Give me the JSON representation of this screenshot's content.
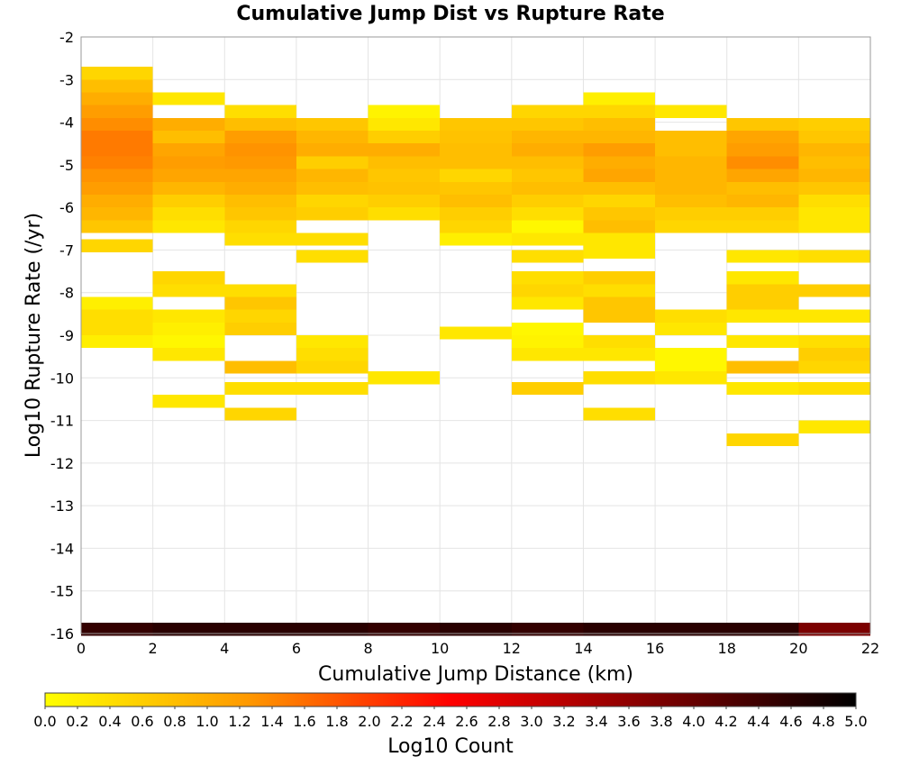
{
  "chart_data": {
    "type": "heatmap",
    "title": "Cumulative Jump Dist vs Rupture Rate",
    "xlabel": "Cumulative Jump Distance (km)",
    "ylabel": "Log10 Rupture Rate (/yr)",
    "xlim": [
      0,
      22
    ],
    "ylim": [
      -16,
      -2
    ],
    "xticks": [
      "0",
      "2",
      "4",
      "6",
      "8",
      "10",
      "12",
      "14",
      "16",
      "18",
      "20",
      "22"
    ],
    "yticks": [
      "-2",
      "-3",
      "-4",
      "-5",
      "-6",
      "-7",
      "-8",
      "-9",
      "-10",
      "-11",
      "-12",
      "-13",
      "-14",
      "-15",
      "-16"
    ],
    "x_bin_width": 2,
    "y_bin_height": 0.3,
    "grid": true,
    "colorbar": {
      "label": "Log10 Count",
      "min": 0.0,
      "max": 5.0,
      "ticks": [
        "0.0",
        "0.2",
        "0.4",
        "0.6",
        "0.8",
        "1.0",
        "1.2",
        "1.4",
        "1.6",
        "1.8",
        "2.0",
        "2.2",
        "2.4",
        "2.6",
        "2.8",
        "3.0",
        "3.2",
        "3.4",
        "3.6",
        "3.8",
        "4.0",
        "4.2",
        "4.4",
        "4.6",
        "4.8",
        "5.0"
      ],
      "colors": [
        "#ffff00",
        "#ff9900",
        "#ff0000",
        "#800000",
        "#000000"
      ],
      "placement": "bottom"
    },
    "cells": [
      {
        "x": 0,
        "y": -2.85,
        "v": 0.5
      },
      {
        "x": 0,
        "y": -3.15,
        "v": 0.8
      },
      {
        "x": 0,
        "y": -3.45,
        "v": 1.0
      },
      {
        "x": 0,
        "y": -3.75,
        "v": 1.2
      },
      {
        "x": 0,
        "y": -4.05,
        "v": 1.35
      },
      {
        "x": 0,
        "y": -4.35,
        "v": 1.5
      },
      {
        "x": 0,
        "y": -4.65,
        "v": 1.5
      },
      {
        "x": 0,
        "y": -4.95,
        "v": 1.45
      },
      {
        "x": 0,
        "y": -5.25,
        "v": 1.3
      },
      {
        "x": 0,
        "y": -5.55,
        "v": 1.2
      },
      {
        "x": 0,
        "y": -5.85,
        "v": 1.0
      },
      {
        "x": 0,
        "y": -6.15,
        "v": 0.9
      },
      {
        "x": 0,
        "y": -6.45,
        "v": 0.7
      },
      {
        "x": 0,
        "y": -6.9,
        "v": 0.5
      },
      {
        "x": 0,
        "y": -8.25,
        "v": 0.2
      },
      {
        "x": 0,
        "y": -8.55,
        "v": 0.4
      },
      {
        "x": 0,
        "y": -8.85,
        "v": 0.4
      },
      {
        "x": 0,
        "y": -9.15,
        "v": 0.2
      },
      {
        "x": 2,
        "y": -3.45,
        "v": 0.3
      },
      {
        "x": 2,
        "y": -4.05,
        "v": 1.0
      },
      {
        "x": 2,
        "y": -4.35,
        "v": 0.8
      },
      {
        "x": 2,
        "y": -4.65,
        "v": 1.1
      },
      {
        "x": 2,
        "y": -4.95,
        "v": 1.2
      },
      {
        "x": 2,
        "y": -5.25,
        "v": 1.1
      },
      {
        "x": 2,
        "y": -5.55,
        "v": 0.9
      },
      {
        "x": 2,
        "y": -5.85,
        "v": 0.6
      },
      {
        "x": 2,
        "y": -6.15,
        "v": 0.4
      },
      {
        "x": 2,
        "y": -6.45,
        "v": 0.3
      },
      {
        "x": 2,
        "y": -7.65,
        "v": 0.5
      },
      {
        "x": 2,
        "y": -7.95,
        "v": 0.4
      },
      {
        "x": 2,
        "y": -8.55,
        "v": 0.3
      },
      {
        "x": 2,
        "y": -8.85,
        "v": 0.2
      },
      {
        "x": 2,
        "y": -9.15,
        "v": 0.1
      },
      {
        "x": 2,
        "y": -9.45,
        "v": 0.3
      },
      {
        "x": 2,
        "y": -10.55,
        "v": 0.3
      },
      {
        "x": 4,
        "y": -3.75,
        "v": 0.4
      },
      {
        "x": 4,
        "y": -4.05,
        "v": 0.8
      },
      {
        "x": 4,
        "y": -4.35,
        "v": 1.2
      },
      {
        "x": 4,
        "y": -4.65,
        "v": 1.3
      },
      {
        "x": 4,
        "y": -4.95,
        "v": 1.25
      },
      {
        "x": 4,
        "y": -5.25,
        "v": 1.1
      },
      {
        "x": 4,
        "y": -5.55,
        "v": 1.0
      },
      {
        "x": 4,
        "y": -5.85,
        "v": 0.8
      },
      {
        "x": 4,
        "y": -6.15,
        "v": 0.7
      },
      {
        "x": 4,
        "y": -6.45,
        "v": 0.5
      },
      {
        "x": 4,
        "y": -6.75,
        "v": 0.4
      },
      {
        "x": 4,
        "y": -7.95,
        "v": 0.4
      },
      {
        "x": 4,
        "y": -8.25,
        "v": 0.7
      },
      {
        "x": 4,
        "y": -8.55,
        "v": 0.5
      },
      {
        "x": 4,
        "y": -8.85,
        "v": 0.6
      },
      {
        "x": 4,
        "y": -9.75,
        "v": 0.8
      },
      {
        "x": 4,
        "y": -10.25,
        "v": 0.4
      },
      {
        "x": 4,
        "y": -10.85,
        "v": 0.5
      },
      {
        "x": 6,
        "y": -4.05,
        "v": 0.7
      },
      {
        "x": 6,
        "y": -4.35,
        "v": 0.9
      },
      {
        "x": 6,
        "y": -4.65,
        "v": 1.0
      },
      {
        "x": 6,
        "y": -4.95,
        "v": 0.6
      },
      {
        "x": 6,
        "y": -5.25,
        "v": 0.9
      },
      {
        "x": 6,
        "y": -5.55,
        "v": 0.8
      },
      {
        "x": 6,
        "y": -5.85,
        "v": 0.5
      },
      {
        "x": 6,
        "y": -6.15,
        "v": 0.6
      },
      {
        "x": 6,
        "y": -6.75,
        "v": 0.4
      },
      {
        "x": 6,
        "y": -7.15,
        "v": 0.4
      },
      {
        "x": 6,
        "y": -9.15,
        "v": 0.3
      },
      {
        "x": 6,
        "y": -9.45,
        "v": 0.4
      },
      {
        "x": 6,
        "y": -9.75,
        "v": 0.5
      },
      {
        "x": 6,
        "y": -10.25,
        "v": 0.4
      },
      {
        "x": 8,
        "y": -3.75,
        "v": 0.15
      },
      {
        "x": 8,
        "y": -4.05,
        "v": 0.3
      },
      {
        "x": 8,
        "y": -4.35,
        "v": 0.6
      },
      {
        "x": 8,
        "y": -4.65,
        "v": 1.0
      },
      {
        "x": 8,
        "y": -4.95,
        "v": 0.8
      },
      {
        "x": 8,
        "y": -5.25,
        "v": 0.7
      },
      {
        "x": 8,
        "y": -5.55,
        "v": 0.75
      },
      {
        "x": 8,
        "y": -5.85,
        "v": 0.6
      },
      {
        "x": 8,
        "y": -6.15,
        "v": 0.4
      },
      {
        "x": 8,
        "y": -10.0,
        "v": 0.3
      },
      {
        "x": 10,
        "y": -4.05,
        "v": 0.7
      },
      {
        "x": 10,
        "y": -4.35,
        "v": 0.75
      },
      {
        "x": 10,
        "y": -4.65,
        "v": 0.8
      },
      {
        "x": 10,
        "y": -4.95,
        "v": 0.8
      },
      {
        "x": 10,
        "y": -5.25,
        "v": 0.5
      },
      {
        "x": 10,
        "y": -5.55,
        "v": 0.7
      },
      {
        "x": 10,
        "y": -5.85,
        "v": 0.8
      },
      {
        "x": 10,
        "y": -6.15,
        "v": 0.6
      },
      {
        "x": 10,
        "y": -6.45,
        "v": 0.5
      },
      {
        "x": 10,
        "y": -6.75,
        "v": 0.2
      },
      {
        "x": 10,
        "y": -8.95,
        "v": 0.3
      },
      {
        "x": 12,
        "y": -3.75,
        "v": 0.5
      },
      {
        "x": 12,
        "y": -4.05,
        "v": 0.7
      },
      {
        "x": 12,
        "y": -4.35,
        "v": 0.9
      },
      {
        "x": 12,
        "y": -4.65,
        "v": 1.0
      },
      {
        "x": 12,
        "y": -4.95,
        "v": 0.8
      },
      {
        "x": 12,
        "y": -5.25,
        "v": 0.7
      },
      {
        "x": 12,
        "y": -5.55,
        "v": 0.8
      },
      {
        "x": 12,
        "y": -5.85,
        "v": 0.6
      },
      {
        "x": 12,
        "y": -6.15,
        "v": 0.4
      },
      {
        "x": 12,
        "y": -6.45,
        "v": 0.1
      },
      {
        "x": 12,
        "y": -6.75,
        "v": 0.3
      },
      {
        "x": 12,
        "y": -7.15,
        "v": 0.4
      },
      {
        "x": 12,
        "y": -7.65,
        "v": 0.4
      },
      {
        "x": 12,
        "y": -7.95,
        "v": 0.5
      },
      {
        "x": 12,
        "y": -8.25,
        "v": 0.3
      },
      {
        "x": 12,
        "y": -8.85,
        "v": 0.1
      },
      {
        "x": 12,
        "y": -9.15,
        "v": 0.15
      },
      {
        "x": 12,
        "y": -9.45,
        "v": 0.3
      },
      {
        "x": 12,
        "y": -10.25,
        "v": 0.6
      },
      {
        "x": 14,
        "y": -3.45,
        "v": 0.2
      },
      {
        "x": 14,
        "y": -3.75,
        "v": 0.5
      },
      {
        "x": 14,
        "y": -4.05,
        "v": 0.8
      },
      {
        "x": 14,
        "y": -4.35,
        "v": 0.9
      },
      {
        "x": 14,
        "y": -4.65,
        "v": 1.2
      },
      {
        "x": 14,
        "y": -4.95,
        "v": 1.0
      },
      {
        "x": 14,
        "y": -5.25,
        "v": 1.1
      },
      {
        "x": 14,
        "y": -5.55,
        "v": 0.8
      },
      {
        "x": 14,
        "y": -5.85,
        "v": 0.5
      },
      {
        "x": 14,
        "y": -6.15,
        "v": 0.7
      },
      {
        "x": 14,
        "y": -6.45,
        "v": 0.8
      },
      {
        "x": 14,
        "y": -6.75,
        "v": 0.3
      },
      {
        "x": 14,
        "y": -7.05,
        "v": 0.3
      },
      {
        "x": 14,
        "y": -7.65,
        "v": 0.6
      },
      {
        "x": 14,
        "y": -7.95,
        "v": 0.4
      },
      {
        "x": 14,
        "y": -8.25,
        "v": 0.7
      },
      {
        "x": 14,
        "y": -8.55,
        "v": 0.7
      },
      {
        "x": 14,
        "y": -9.15,
        "v": 0.4
      },
      {
        "x": 14,
        "y": -9.45,
        "v": 0.3
      },
      {
        "x": 14,
        "y": -10.0,
        "v": 0.4
      },
      {
        "x": 14,
        "y": -10.85,
        "v": 0.4
      },
      {
        "x": 16,
        "y": -3.75,
        "v": 0.3
      },
      {
        "x": 16,
        "y": -4.35,
        "v": 0.8
      },
      {
        "x": 16,
        "y": -4.65,
        "v": 0.8
      },
      {
        "x": 16,
        "y": -4.95,
        "v": 0.9
      },
      {
        "x": 16,
        "y": -5.25,
        "v": 0.9
      },
      {
        "x": 16,
        "y": -5.55,
        "v": 0.9
      },
      {
        "x": 16,
        "y": -5.85,
        "v": 0.8
      },
      {
        "x": 16,
        "y": -6.15,
        "v": 0.6
      },
      {
        "x": 16,
        "y": -6.45,
        "v": 0.5
      },
      {
        "x": 16,
        "y": -8.55,
        "v": 0.4
      },
      {
        "x": 16,
        "y": -8.85,
        "v": 0.3
      },
      {
        "x": 16,
        "y": -9.45,
        "v": 0.1
      },
      {
        "x": 16,
        "y": -9.75,
        "v": 0.1
      },
      {
        "x": 16,
        "y": -10.0,
        "v": 0.3
      },
      {
        "x": 18,
        "y": -4.05,
        "v": 0.7
      },
      {
        "x": 18,
        "y": -4.35,
        "v": 1.1
      },
      {
        "x": 18,
        "y": -4.65,
        "v": 1.2
      },
      {
        "x": 18,
        "y": -4.95,
        "v": 1.35
      },
      {
        "x": 18,
        "y": -5.25,
        "v": 1.1
      },
      {
        "x": 18,
        "y": -5.55,
        "v": 0.8
      },
      {
        "x": 18,
        "y": -5.85,
        "v": 0.9
      },
      {
        "x": 18,
        "y": -6.15,
        "v": 0.6
      },
      {
        "x": 18,
        "y": -6.45,
        "v": 0.5
      },
      {
        "x": 18,
        "y": -7.15,
        "v": 0.3
      },
      {
        "x": 18,
        "y": -7.65,
        "v": 0.3
      },
      {
        "x": 18,
        "y": -7.95,
        "v": 0.6
      },
      {
        "x": 18,
        "y": -8.25,
        "v": 0.6
      },
      {
        "x": 18,
        "y": -8.55,
        "v": 0.3
      },
      {
        "x": 18,
        "y": -9.15,
        "v": 0.3
      },
      {
        "x": 18,
        "y": -9.75,
        "v": 0.8
      },
      {
        "x": 18,
        "y": -10.25,
        "v": 0.3
      },
      {
        "x": 18,
        "y": -11.45,
        "v": 0.5
      },
      {
        "x": 20,
        "y": -4.05,
        "v": 0.6
      },
      {
        "x": 20,
        "y": -4.35,
        "v": 0.7
      },
      {
        "x": 20,
        "y": -4.65,
        "v": 0.9
      },
      {
        "x": 20,
        "y": -4.95,
        "v": 0.8
      },
      {
        "x": 20,
        "y": -5.25,
        "v": 0.9
      },
      {
        "x": 20,
        "y": -5.55,
        "v": 0.7
      },
      {
        "x": 20,
        "y": -5.85,
        "v": 0.4
      },
      {
        "x": 20,
        "y": -6.15,
        "v": 0.3
      },
      {
        "x": 20,
        "y": -6.45,
        "v": 0.3
      },
      {
        "x": 20,
        "y": -7.15,
        "v": 0.4
      },
      {
        "x": 20,
        "y": -7.95,
        "v": 0.6
      },
      {
        "x": 20,
        "y": -8.55,
        "v": 0.3
      },
      {
        "x": 20,
        "y": -9.15,
        "v": 0.4
      },
      {
        "x": 20,
        "y": -9.45,
        "v": 0.6
      },
      {
        "x": 20,
        "y": -9.75,
        "v": 0.5
      },
      {
        "x": 20,
        "y": -10.25,
        "v": 0.4
      },
      {
        "x": 20,
        "y": -11.15,
        "v": 0.3
      },
      {
        "x": 0,
        "y": -15.9,
        "v": 4.5
      },
      {
        "x": 2,
        "y": -15.9,
        "v": 4.6
      },
      {
        "x": 4,
        "y": -15.9,
        "v": 4.6
      },
      {
        "x": 6,
        "y": -15.9,
        "v": 4.6
      },
      {
        "x": 8,
        "y": -15.9,
        "v": 4.5
      },
      {
        "x": 10,
        "y": -15.9,
        "v": 4.6
      },
      {
        "x": 12,
        "y": -15.9,
        "v": 4.5
      },
      {
        "x": 14,
        "y": -15.9,
        "v": 4.6
      },
      {
        "x": 16,
        "y": -15.9,
        "v": 4.6
      },
      {
        "x": 18,
        "y": -15.9,
        "v": 4.6
      },
      {
        "x": 20,
        "y": -15.9,
        "v": 3.8
      }
    ]
  }
}
